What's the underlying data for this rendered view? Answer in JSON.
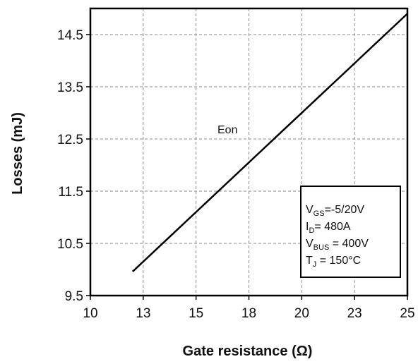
{
  "chart_data": {
    "type": "line",
    "title": "",
    "xlabel": "Gate resistance (Ω)",
    "ylabel": "Losses (mJ)",
    "xlim": [
      10,
      25
    ],
    "ylim": [
      9.5,
      15
    ],
    "x_ticks": [
      10,
      12.5,
      15,
      17.5,
      20,
      22.5,
      25
    ],
    "x_tick_labels": [
      "10",
      "13",
      "15",
      "18",
      "20",
      "23",
      "25"
    ],
    "y_ticks": [
      9.5,
      10.5,
      11.5,
      12.5,
      13.5,
      14.5
    ],
    "y_tick_labels": [
      "9.5",
      "10.5",
      "11.5",
      "12.5",
      "13.5",
      "14.5"
    ],
    "grid": true,
    "grid_style": "dashed",
    "series": [
      {
        "name": "Eon",
        "color": "#000000",
        "x": [
          12,
          25
        ],
        "y": [
          9.96,
          14.9
        ]
      }
    ],
    "annotation_box": {
      "lines": [
        {
          "main": "V",
          "sub": "GS",
          "rest": "=-5/20V"
        },
        {
          "main": "I",
          "sub": "D",
          "rest": "= 480A"
        },
        {
          "main": "V",
          "sub": "BUS",
          "rest": " = 400V"
        },
        {
          "main": "T",
          "sub": "J",
          "rest": " = 150°C"
        }
      ]
    }
  }
}
